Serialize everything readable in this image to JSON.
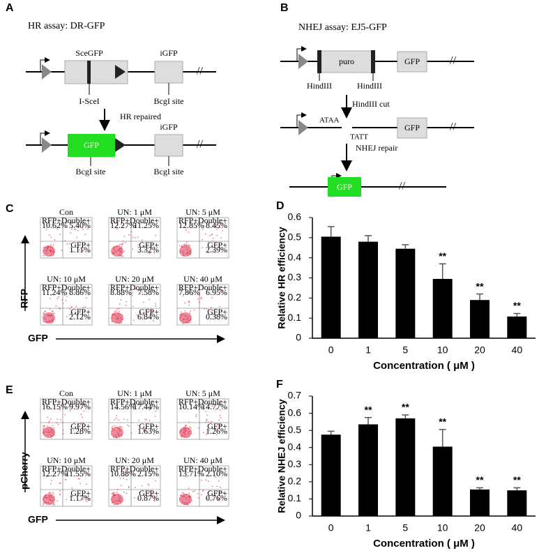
{
  "diagram_a": {
    "letter": "A",
    "title": "HR assay: DR-GFP",
    "scegfp": "SceGFP",
    "igfp_top": "iGFP",
    "isce": "I-SceI",
    "bcgl_top": "BcgI site",
    "repair": "HR repaired",
    "gfp": "GFP",
    "igfp_bottom": "iGFP",
    "bcgl_left": "BcgI site",
    "bcgl_right": "BcgI site"
  },
  "diagram_b": {
    "letter": "B",
    "title": "NHEJ assay: EJ5-GFP",
    "puro": "puro",
    "gfp_top": "GFP",
    "hind_left": "HindIII",
    "hind_right": "HindIII",
    "cut": "HindIII cut",
    "ataa": "ATAA",
    "tatt": "TATT",
    "gfp_mid": "GFP",
    "repair": "NHEJ repair",
    "gfp_bottom": "GFP"
  },
  "flow_c": {
    "letter": "C",
    "y_label": "RFP",
    "x_label": "GFP",
    "quadrant_labels": [
      "RFP+",
      "Double+",
      "GFP+"
    ],
    "plots": [
      {
        "title": "Con",
        "values": [
          "10.62%",
          "5.40%",
          "1.11%"
        ]
      },
      {
        "title": "UN: 1 μM",
        "values": [
          "12.27%",
          "11.25%",
          "3.32%"
        ]
      },
      {
        "title": "UN: 5 μM",
        "values": [
          "12.85%",
          "8.45%",
          "2.39%"
        ]
      },
      {
        "title": "UN: 10 μM",
        "values": [
          "11.24%",
          "8.86%",
          "2.12%"
        ]
      },
      {
        "title": "UN: 20 μM",
        "values": [
          "8.88%",
          "7.58%",
          "6.84%"
        ]
      },
      {
        "title": "UN: 40 μM",
        "values": [
          "7.86%",
          "6.95%",
          "0.38%"
        ]
      }
    ]
  },
  "flow_e": {
    "letter": "E",
    "y_label": "pCherry",
    "x_label": "GFP",
    "quadrant_labels": [
      "RFP+",
      "Double+",
      "GFP+"
    ],
    "plots": [
      {
        "title": "Con",
        "values": [
          "16.15%",
          "9.97%",
          "1.28%"
        ]
      },
      {
        "title": "UN: 1 μM",
        "values": [
          "14.56%",
          "17.44%",
          "1.63%"
        ]
      },
      {
        "title": "UN: 5 μM",
        "values": [
          "10.14%",
          "14.77%",
          "1.26%"
        ]
      },
      {
        "title": "UN: 10 μM",
        "values": [
          "12.27%",
          "11.55%",
          "1.17%"
        ]
      },
      {
        "title": "UN: 20 μM",
        "values": [
          "10.88%",
          "2.15%",
          "0.87%"
        ]
      },
      {
        "title": "UN: 40 μM",
        "values": [
          "13.71%",
          "2.10%",
          "0.76%"
        ]
      }
    ]
  },
  "chart_data": [
    {
      "type": "bar",
      "panel": "D",
      "y_label": "Relative HR efficiency",
      "x_label": "Concentration ( μM )",
      "categories": [
        "0",
        "1",
        "5",
        "10",
        "20",
        "40"
      ],
      "values": [
        0.505,
        0.48,
        0.445,
        0.295,
        0.19,
        0.108
      ],
      "errors": [
        0.05,
        0.03,
        0.02,
        0.075,
        0.03,
        0.015
      ],
      "significance": [
        null,
        null,
        null,
        "**",
        "**",
        "**"
      ],
      "color": "#000000",
      "ylim": [
        0,
        0.6
      ],
      "yticks": [
        0,
        0.1,
        0.2,
        0.3,
        0.4,
        0.5,
        0.6
      ]
    },
    {
      "type": "bar",
      "panel": "F",
      "y_label": "Relative NHEJ efficiency",
      "x_label": "Concentration ( μM )",
      "categories": [
        "0",
        "1",
        "5",
        "10",
        "20",
        "40"
      ],
      "values": [
        0.475,
        0.535,
        0.57,
        0.405,
        0.155,
        0.15
      ],
      "errors": [
        0.02,
        0.04,
        0.02,
        0.1,
        0.01,
        0.015
      ],
      "significance": [
        null,
        "**",
        "**",
        "**",
        "**",
        "**"
      ],
      "color": "#000000",
      "ylim": [
        0,
        0.7
      ],
      "yticks": [
        0,
        0.1,
        0.2,
        0.3,
        0.4,
        0.5,
        0.6,
        0.7
      ]
    }
  ]
}
